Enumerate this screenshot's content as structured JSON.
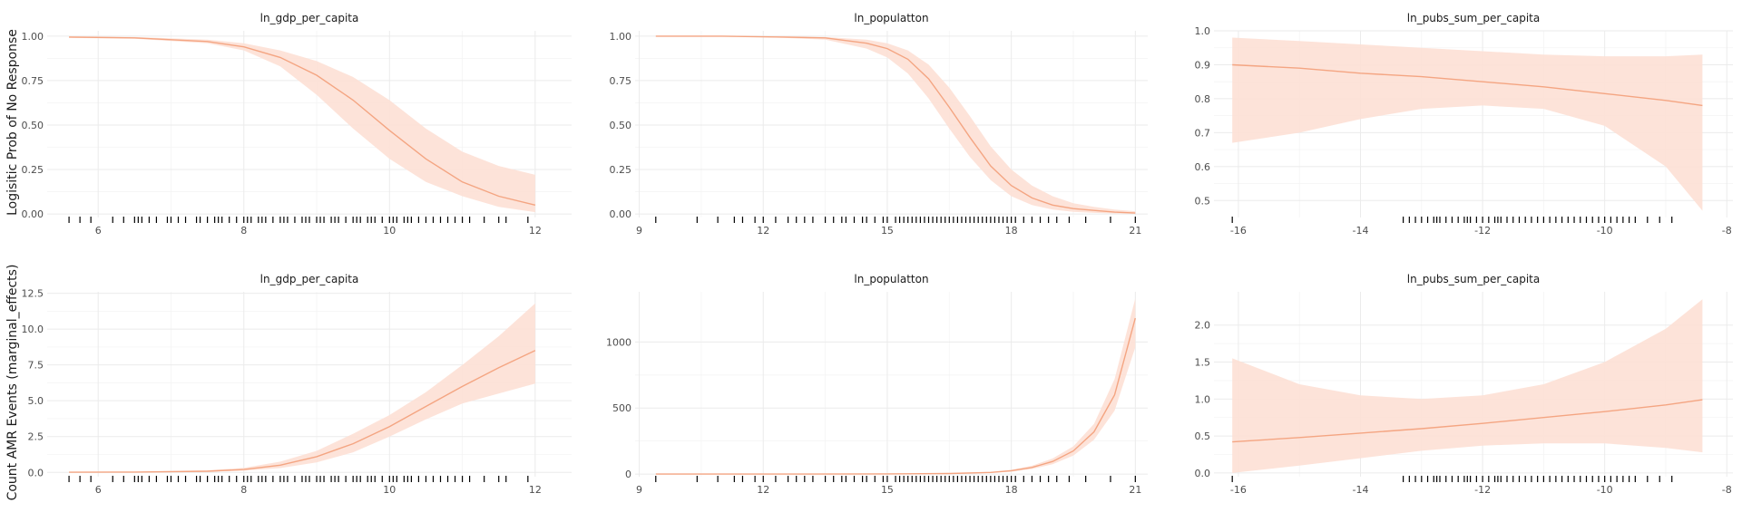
{
  "row_labels": [
    "Logisitic Prob of No Response",
    "Count AMR Events (marginal_effects)"
  ],
  "colors": {
    "line": "#F4A582",
    "ribbon": "#FDE0D5",
    "grid_major": "#EBEBEB",
    "grid_minor": "#F4F4F4",
    "rug": "#000000",
    "background": "#FFFFFF"
  },
  "chart_data": [
    {
      "type": "line",
      "row": 0,
      "col": 0,
      "title": "ln_gdp_per_capita",
      "xlim": [
        5.3,
        12.5
      ],
      "ylim": [
        -0.02,
        1.03
      ],
      "xticks": [
        6,
        8,
        10,
        12
      ],
      "xtick_labels": [
        "6",
        "8",
        "10",
        "12"
      ],
      "yticks": [
        0,
        0.25,
        0.5,
        0.75,
        1.0
      ],
      "ytick_labels": [
        "0.00",
        "0.25",
        "0.50",
        "0.75",
        "1.00"
      ],
      "x": [
        5.6,
        6.5,
        7.5,
        8.0,
        8.5,
        9.0,
        9.5,
        10.0,
        10.5,
        11.0,
        11.5,
        12.0
      ],
      "y": [
        0.995,
        0.99,
        0.97,
        0.94,
        0.88,
        0.78,
        0.64,
        0.47,
        0.31,
        0.18,
        0.1,
        0.05
      ],
      "lower": [
        0.99,
        0.985,
        0.96,
        0.92,
        0.83,
        0.67,
        0.48,
        0.31,
        0.18,
        0.1,
        0.04,
        0.01
      ],
      "upper": [
        1.0,
        0.995,
        0.98,
        0.96,
        0.92,
        0.86,
        0.77,
        0.64,
        0.48,
        0.35,
        0.27,
        0.22
      ],
      "rug": [
        5.6,
        5.75,
        5.9,
        6.2,
        6.35,
        6.5,
        6.55,
        6.6,
        6.7,
        6.8,
        6.95,
        7.0,
        7.1,
        7.2,
        7.35,
        7.4,
        7.5,
        7.6,
        7.65,
        7.7,
        7.8,
        7.9,
        8.0,
        8.05,
        8.1,
        8.2,
        8.25,
        8.3,
        8.4,
        8.5,
        8.55,
        8.6,
        8.7,
        8.8,
        8.85,
        8.9,
        9.0,
        9.05,
        9.1,
        9.2,
        9.25,
        9.3,
        9.4,
        9.5,
        9.55,
        9.6,
        9.7,
        9.75,
        9.8,
        9.9,
        10.0,
        10.05,
        10.1,
        10.2,
        10.25,
        10.3,
        10.4,
        10.5,
        10.6,
        10.7,
        10.8,
        10.9,
        11.0,
        11.1,
        11.3,
        11.5,
        11.6,
        11.9
      ]
    },
    {
      "type": "line",
      "row": 0,
      "col": 1,
      "title": "ln_populatton",
      "xlim": [
        8.9,
        21.3
      ],
      "ylim": [
        -0.02,
        1.03
      ],
      "xticks": [
        9,
        12,
        15,
        18,
        21
      ],
      "xtick_labels": [
        "9",
        "12",
        "15",
        "18",
        "21"
      ],
      "yticks": [
        0,
        0.25,
        0.5,
        0.75,
        1.0
      ],
      "ytick_labels": [
        "0.00",
        "0.25",
        "0.50",
        "0.75",
        "1.00"
      ],
      "x": [
        9.4,
        11.0,
        12.5,
        13.5,
        14.5,
        15.0,
        15.5,
        16.0,
        16.5,
        17.0,
        17.5,
        18.0,
        18.5,
        19.0,
        19.5,
        20.0,
        20.5,
        21.0
      ],
      "y": [
        1.0,
        1.0,
        0.995,
        0.99,
        0.96,
        0.93,
        0.87,
        0.76,
        0.6,
        0.43,
        0.27,
        0.16,
        0.09,
        0.05,
        0.03,
        0.02,
        0.01,
        0.005
      ],
      "lower": [
        1.0,
        1.0,
        0.99,
        0.98,
        0.93,
        0.88,
        0.79,
        0.65,
        0.48,
        0.32,
        0.19,
        0.1,
        0.05,
        0.025,
        0.012,
        0.006,
        0.003,
        0.001
      ],
      "upper": [
        1.0,
        1.0,
        1.0,
        0.995,
        0.98,
        0.96,
        0.92,
        0.84,
        0.71,
        0.55,
        0.38,
        0.25,
        0.16,
        0.1,
        0.06,
        0.04,
        0.025,
        0.015
      ],
      "rug": [
        9.4,
        10.4,
        10.9,
        11.3,
        11.5,
        11.8,
        12.0,
        12.3,
        12.6,
        12.8,
        13.0,
        13.2,
        13.5,
        13.7,
        13.9,
        14.0,
        14.2,
        14.4,
        14.5,
        14.7,
        14.9,
        15.0,
        15.2,
        15.3,
        15.4,
        15.5,
        15.6,
        15.7,
        15.8,
        15.9,
        16.0,
        16.1,
        16.2,
        16.3,
        16.4,
        16.5,
        16.6,
        16.7,
        16.8,
        16.9,
        17.0,
        17.1,
        17.2,
        17.3,
        17.4,
        17.5,
        17.6,
        17.7,
        17.8,
        17.9,
        18.0,
        18.1,
        18.3,
        18.5,
        18.7,
        18.9,
        19.1,
        19.4,
        19.8,
        20.4,
        21.0
      ]
    },
    {
      "type": "line",
      "row": 0,
      "col": 2,
      "title": "ln_pubs_sum_per_capita",
      "xlim": [
        -16.4,
        -7.9
      ],
      "ylim": [
        0.45,
        1.0
      ],
      "xticks": [
        -16,
        -14,
        -12,
        -10,
        -8
      ],
      "xtick_labels": [
        "-16",
        "-14",
        "-12",
        "-10",
        "-8"
      ],
      "yticks": [
        0.5,
        0.6,
        0.7,
        0.8,
        0.9,
        1.0
      ],
      "ytick_labels": [
        "0.5",
        "0.6",
        "0.7",
        "0.8",
        "0.9",
        "1.0"
      ],
      "x": [
        -16.1,
        -15.0,
        -14.0,
        -13.0,
        -12.0,
        -11.0,
        -10.0,
        -9.0,
        -8.4
      ],
      "y": [
        0.9,
        0.89,
        0.875,
        0.865,
        0.85,
        0.835,
        0.815,
        0.795,
        0.78
      ],
      "lower": [
        0.67,
        0.7,
        0.74,
        0.77,
        0.78,
        0.77,
        0.72,
        0.6,
        0.47
      ],
      "upper": [
        0.98,
        0.97,
        0.96,
        0.95,
        0.94,
        0.93,
        0.925,
        0.925,
        0.93
      ],
      "rug": [
        -16.1,
        -13.3,
        -13.2,
        -13.1,
        -13.0,
        -12.9,
        -12.8,
        -12.75,
        -12.7,
        -12.6,
        -12.5,
        -12.4,
        -12.3,
        -12.25,
        -12.2,
        -12.1,
        -12.0,
        -11.9,
        -11.8,
        -11.75,
        -11.7,
        -11.6,
        -11.5,
        -11.4,
        -11.3,
        -11.2,
        -11.1,
        -11.0,
        -10.9,
        -10.8,
        -10.7,
        -10.6,
        -10.5,
        -10.4,
        -10.3,
        -10.2,
        -10.1,
        -10.0,
        -9.9,
        -9.8,
        -9.7,
        -9.6,
        -9.5,
        -9.3,
        -9.1,
        -8.9
      ]
    },
    {
      "type": "line",
      "row": 1,
      "col": 0,
      "title": "ln_gdp_per_capita",
      "xlim": [
        5.3,
        12.5
      ],
      "ylim": [
        -0.3,
        12.6
      ],
      "xticks": [
        6,
        8,
        10,
        12
      ],
      "xtick_labels": [
        "6",
        "8",
        "10",
        "12"
      ],
      "yticks": [
        0,
        2.5,
        5.0,
        7.5,
        10.0,
        12.5
      ],
      "ytick_labels": [
        "0.0",
        "2.5",
        "5.0",
        "7.5",
        "10.0",
        "12.5"
      ],
      "x": [
        5.6,
        6.5,
        7.5,
        8.0,
        8.5,
        9.0,
        9.5,
        10.0,
        10.5,
        11.0,
        11.5,
        12.0
      ],
      "y": [
        0.01,
        0.02,
        0.08,
        0.2,
        0.5,
        1.1,
        2.0,
        3.2,
        4.6,
        6.0,
        7.3,
        8.5
      ],
      "lower": [
        0.0,
        0.01,
        0.05,
        0.12,
        0.3,
        0.7,
        1.4,
        2.5,
        3.7,
        4.8,
        5.5,
        6.2
      ],
      "upper": [
        0.02,
        0.04,
        0.15,
        0.32,
        0.75,
        1.5,
        2.7,
        4.0,
        5.6,
        7.5,
        9.5,
        11.8
      ],
      "rug": [
        5.6,
        5.75,
        5.9,
        6.2,
        6.35,
        6.5,
        6.55,
        6.6,
        6.7,
        6.8,
        6.95,
        7.0,
        7.1,
        7.2,
        7.35,
        7.4,
        7.5,
        7.6,
        7.65,
        7.7,
        7.8,
        7.9,
        8.0,
        8.05,
        8.1,
        8.2,
        8.25,
        8.3,
        8.4,
        8.5,
        8.55,
        8.6,
        8.7,
        8.8,
        8.85,
        8.9,
        9.0,
        9.05,
        9.1,
        9.2,
        9.25,
        9.3,
        9.4,
        9.5,
        9.55,
        9.6,
        9.7,
        9.75,
        9.8,
        9.9,
        10.0,
        10.05,
        10.1,
        10.2,
        10.25,
        10.3,
        10.4,
        10.5,
        10.6,
        10.7,
        10.8,
        10.9,
        11.0,
        11.1,
        11.3,
        11.5,
        11.6,
        11.9
      ]
    },
    {
      "type": "line",
      "row": 1,
      "col": 1,
      "title": "ln_populatton",
      "xlim": [
        8.9,
        21.3
      ],
      "ylim": [
        -20,
        1380
      ],
      "xticks": [
        9,
        12,
        15,
        18,
        21
      ],
      "xtick_labels": [
        "9",
        "12",
        "15",
        "18",
        "21"
      ],
      "yticks": [
        0,
        500,
        1000
      ],
      "ytick_labels": [
        "0",
        "500",
        "1000"
      ],
      "x": [
        9.4,
        12.0,
        15.0,
        16.5,
        17.5,
        18.0,
        18.5,
        19.0,
        19.5,
        20.0,
        20.5,
        21.0
      ],
      "y": [
        0,
        0,
        1,
        4,
        12,
        25,
        50,
        95,
        175,
        320,
        600,
        1180
      ],
      "lower": [
        0,
        0,
        0,
        2,
        8,
        18,
        38,
        75,
        140,
        260,
        480,
        960
      ],
      "upper": [
        0,
        0,
        2,
        6,
        16,
        32,
        63,
        118,
        210,
        380,
        720,
        1330
      ],
      "rug": [
        9.4,
        10.4,
        10.9,
        11.3,
        11.5,
        11.8,
        12.0,
        12.3,
        12.6,
        12.8,
        13.0,
        13.2,
        13.5,
        13.7,
        13.9,
        14.0,
        14.2,
        14.4,
        14.5,
        14.7,
        14.9,
        15.0,
        15.2,
        15.3,
        15.4,
        15.5,
        15.6,
        15.7,
        15.8,
        15.9,
        16.0,
        16.1,
        16.2,
        16.3,
        16.4,
        16.5,
        16.6,
        16.7,
        16.8,
        16.9,
        17.0,
        17.1,
        17.2,
        17.3,
        17.4,
        17.5,
        17.6,
        17.7,
        17.8,
        17.9,
        18.0,
        18.1,
        18.3,
        18.5,
        18.7,
        18.9,
        19.1,
        19.4,
        19.8,
        20.4,
        21.0
      ]
    },
    {
      "type": "line",
      "row": 1,
      "col": 2,
      "title": "ln_pubs_sum_per_capita",
      "xlim": [
        -16.4,
        -7.9
      ],
      "ylim": [
        -0.05,
        2.45
      ],
      "xticks": [
        -16,
        -14,
        -12,
        -10,
        -8
      ],
      "xtick_labels": [
        "-16",
        "-14",
        "-12",
        "-10",
        "-8"
      ],
      "yticks": [
        0,
        0.5,
        1.0,
        1.5,
        2.0
      ],
      "ytick_labels": [
        "0.0",
        "0.5",
        "1.0",
        "1.5",
        "2.0"
      ],
      "x": [
        -16.1,
        -15.0,
        -14.0,
        -13.0,
        -12.0,
        -11.0,
        -10.0,
        -9.0,
        -8.4
      ],
      "y": [
        0.42,
        0.48,
        0.54,
        0.6,
        0.67,
        0.75,
        0.83,
        0.92,
        0.99
      ],
      "lower": [
        0.0,
        0.1,
        0.2,
        0.3,
        0.37,
        0.4,
        0.4,
        0.34,
        0.28
      ],
      "upper": [
        1.55,
        1.2,
        1.05,
        1.0,
        1.05,
        1.2,
        1.5,
        1.95,
        2.35
      ],
      "rug": [
        -16.1,
        -13.3,
        -13.2,
        -13.1,
        -13.0,
        -12.9,
        -12.8,
        -12.75,
        -12.7,
        -12.6,
        -12.5,
        -12.4,
        -12.3,
        -12.25,
        -12.2,
        -12.1,
        -12.0,
        -11.9,
        -11.8,
        -11.75,
        -11.7,
        -11.6,
        -11.5,
        -11.4,
        -11.3,
        -11.2,
        -11.1,
        -11.0,
        -10.9,
        -10.8,
        -10.7,
        -10.6,
        -10.5,
        -10.4,
        -10.3,
        -10.2,
        -10.1,
        -10.0,
        -9.9,
        -9.8,
        -9.7,
        -9.6,
        -9.5,
        -9.3,
        -9.1,
        -8.9
      ]
    }
  ]
}
